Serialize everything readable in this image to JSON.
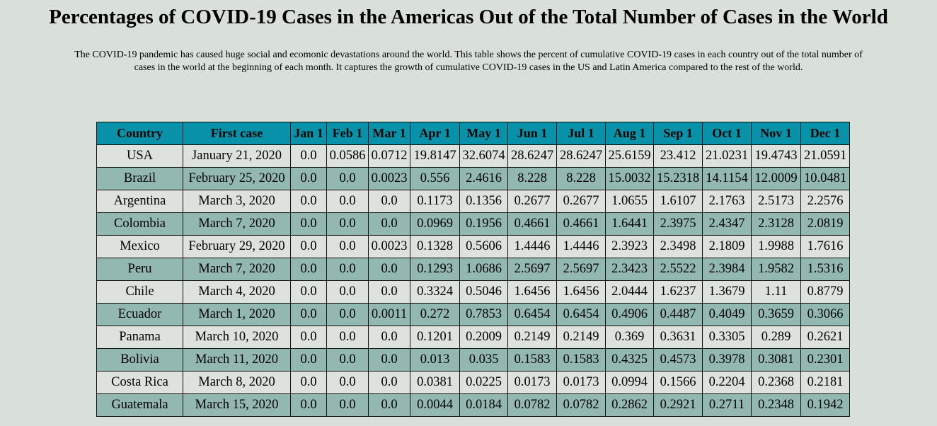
{
  "header": {
    "title": "Percentages of COVID-19 Cases in the Americas Out of the Total Number of Cases in the World",
    "description": "The COVID-19 pandemic has caused huge social and ecomonic devastations around the world. This table shows the percent of cumulative COVID-19 cases in each country out of the total number of cases in the world at the beginning of each month. It captures the growth of cumulative COVID-19 cases in the US and Latin America compared to the rest of the world."
  },
  "table": {
    "columns": [
      "Country",
      "First case",
      "Jan 1",
      "Feb 1",
      "Mar 1",
      "Apr 1",
      "May 1",
      "Jun 1",
      "Jul 1",
      "Aug 1",
      "Sep 1",
      "Oct 1",
      "Nov 1",
      "Dec 1"
    ],
    "rows": [
      [
        "USA",
        "January 21, 2020",
        "0.0",
        "0.0586",
        "0.0712",
        "19.8147",
        "32.6074",
        "28.6247",
        "28.6247",
        "25.6159",
        "23.412",
        "21.0231",
        "19.4743",
        "21.0591"
      ],
      [
        "Brazil",
        "February 25, 2020",
        "0.0",
        "0.0",
        "0.0023",
        "0.556",
        "2.4616",
        "8.228",
        "8.228",
        "15.0032",
        "15.2318",
        "14.1154",
        "12.0009",
        "10.0481"
      ],
      [
        "Argentina",
        "March 3, 2020",
        "0.0",
        "0.0",
        "0.0",
        "0.1173",
        "0.1356",
        "0.2677",
        "0.2677",
        "1.0655",
        "1.6107",
        "2.1763",
        "2.5173",
        "2.2576"
      ],
      [
        "Colombia",
        "March 7, 2020",
        "0.0",
        "0.0",
        "0.0",
        "0.0969",
        "0.1956",
        "0.4661",
        "0.4661",
        "1.6441",
        "2.3975",
        "2.4347",
        "2.3128",
        "2.0819"
      ],
      [
        "Mexico",
        "February 29, 2020",
        "0.0",
        "0.0",
        "0.0023",
        "0.1328",
        "0.5606",
        "1.4446",
        "1.4446",
        "2.3923",
        "2.3498",
        "2.1809",
        "1.9988",
        "1.7616"
      ],
      [
        "Peru",
        "March 7, 2020",
        "0.0",
        "0.0",
        "0.0",
        "0.1293",
        "1.0686",
        "2.5697",
        "2.5697",
        "2.3423",
        "2.5522",
        "2.3984",
        "1.9582",
        "1.5316"
      ],
      [
        "Chile",
        "March 4, 2020",
        "0.0",
        "0.0",
        "0.0",
        "0.3324",
        "0.5046",
        "1.6456",
        "1.6456",
        "2.0444",
        "1.6237",
        "1.3679",
        "1.11",
        "0.8779"
      ],
      [
        "Ecuador",
        "March 1, 2020",
        "0.0",
        "0.0",
        "0.0011",
        "0.272",
        "0.7853",
        "0.6454",
        "0.6454",
        "0.4906",
        "0.4487",
        "0.4049",
        "0.3659",
        "0.3066"
      ],
      [
        "Panama",
        "March 10, 2020",
        "0.0",
        "0.0",
        "0.0",
        "0.1201",
        "0.2009",
        "0.2149",
        "0.2149",
        "0.369",
        "0.3631",
        "0.3305",
        "0.289",
        "0.2621"
      ],
      [
        "Bolivia",
        "March 11, 2020",
        "0.0",
        "0.0",
        "0.0",
        "0.013",
        "0.035",
        "0.1583",
        "0.1583",
        "0.4325",
        "0.4573",
        "0.3978",
        "0.3081",
        "0.2301"
      ],
      [
        "Costa Rica",
        "March 8, 2020",
        "0.0",
        "0.0",
        "0.0",
        "0.0381",
        "0.0225",
        "0.0173",
        "0.0173",
        "0.0994",
        "0.1566",
        "0.2204",
        "0.2368",
        "0.2181"
      ],
      [
        "Guatemala",
        "March 15, 2020",
        "0.0",
        "0.0",
        "0.0",
        "0.0044",
        "0.0184",
        "0.0782",
        "0.0782",
        "0.2862",
        "0.2921",
        "0.2711",
        "0.2348",
        "0.1942"
      ]
    ]
  }
}
